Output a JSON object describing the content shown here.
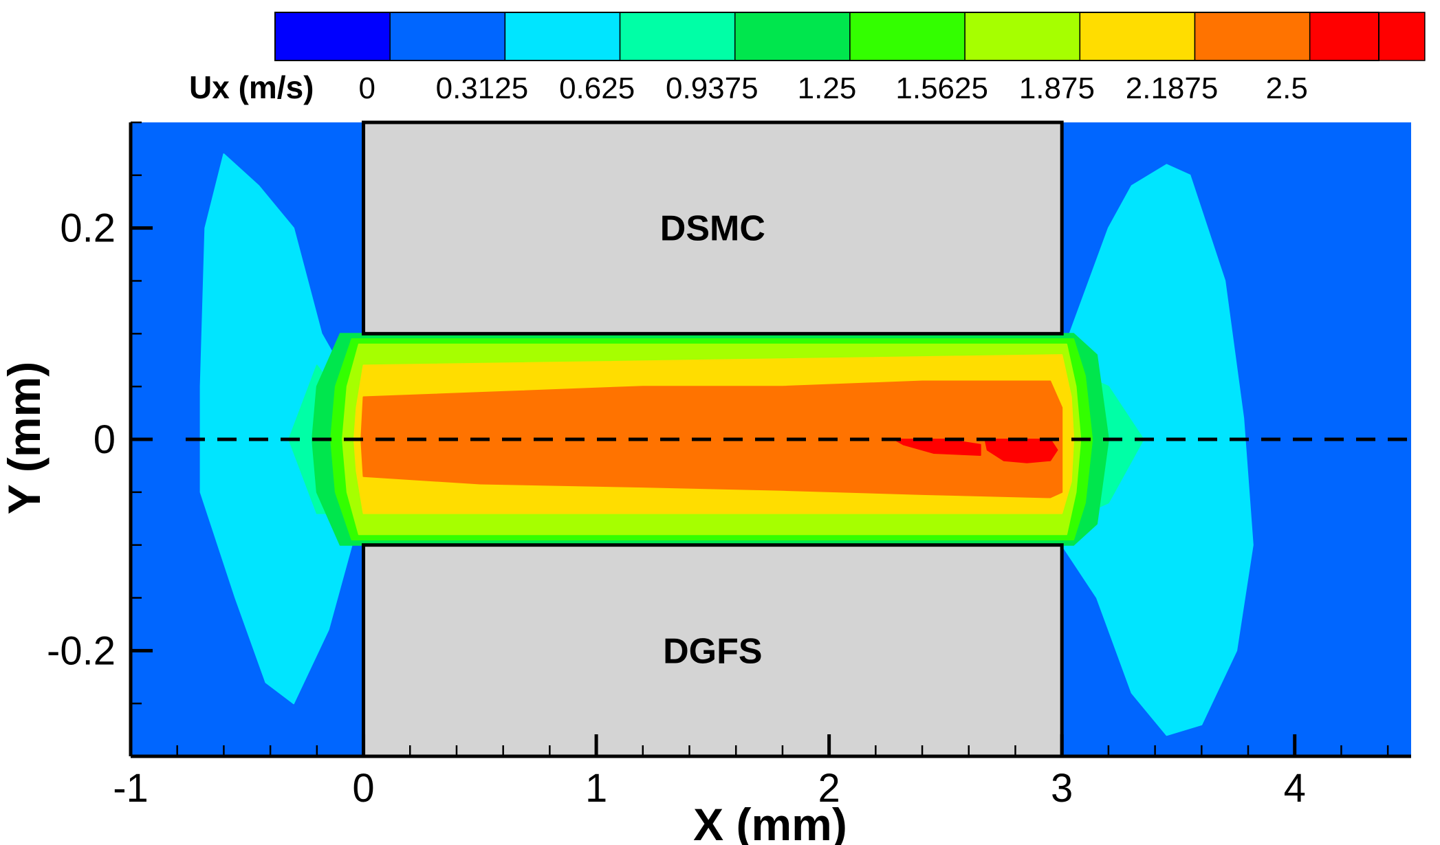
{
  "chart_data": {
    "type": "heatmap",
    "title": "",
    "xlabel": "X (mm)",
    "ylabel": "Y (mm)",
    "xlim": [
      -1,
      4.5
    ],
    "ylim": [
      -0.3,
      0.3
    ],
    "x_ticks": [
      -1,
      0,
      1,
      2,
      3,
      4
    ],
    "x_tick_labels": [
      "-1",
      "0",
      "1",
      "2",
      "3",
      "4"
    ],
    "y_ticks": [
      -0.2,
      0,
      0.2
    ],
    "y_tick_labels": [
      "-0.2",
      "0",
      "0.2"
    ],
    "colorbar": {
      "label": "Ux (m/s)",
      "position": "top",
      "tick_values": [
        0,
        0.3125,
        0.625,
        0.9375,
        1.25,
        1.5625,
        1.875,
        2.1875,
        2.5
      ],
      "tick_labels": [
        "0",
        "0.3125",
        "0.625",
        "0.9375",
        "1.25",
        "1.5625",
        "1.875",
        "2.1875",
        "2.5"
      ],
      "range": [
        -0.25,
        2.75
      ],
      "band_width": 0.3125,
      "colors": [
        "#0000ff",
        "#0066ff",
        "#00e5ff",
        "#00ffa6",
        "#00e64d",
        "#33ff00",
        "#a6ff00",
        "#ffdd00",
        "#ff7300",
        "#ff0000"
      ]
    },
    "blocks": [
      {
        "name": "DSMC",
        "x": [
          0,
          3
        ],
        "y": [
          0.1,
          0.3
        ]
      },
      {
        "name": "DGFS",
        "x": [
          0,
          3
        ],
        "y": [
          -0.3,
          -0.1
        ]
      }
    ],
    "block_color": "#d4d4d4",
    "background_color": "#0066ff",
    "centerline_y": 0,
    "contours": [
      {
        "level": 0.3125,
        "color": "#00e5ff",
        "regions": [
          [
            [
              -0.6,
              0.27
            ],
            [
              -0.45,
              0.24
            ],
            [
              -0.3,
              0.2
            ],
            [
              -0.18,
              0.1
            ],
            [
              -0.05,
              0.05
            ],
            [
              0,
              0
            ],
            [
              -0.05,
              -0.1
            ],
            [
              -0.15,
              -0.18
            ],
            [
              -0.3,
              -0.25
            ],
            [
              -0.42,
              -0.23
            ],
            [
              -0.55,
              -0.15
            ],
            [
              -0.7,
              -0.05
            ],
            [
              -0.7,
              0.05
            ],
            [
              -0.68,
              0.2
            ]
          ],
          [
            [
              3.0,
              0.08
            ],
            [
              3.2,
              0.2
            ],
            [
              3.3,
              0.24
            ],
            [
              3.45,
              0.26
            ],
            [
              3.55,
              0.25
            ],
            [
              3.7,
              0.15
            ],
            [
              3.78,
              0.02
            ],
            [
              3.82,
              -0.1
            ],
            [
              3.75,
              -0.2
            ],
            [
              3.6,
              -0.27
            ],
            [
              3.45,
              -0.28
            ],
            [
              3.3,
              -0.24
            ],
            [
              3.15,
              -0.15
            ],
            [
              3.0,
              -0.1
            ]
          ]
        ]
      },
      {
        "level": 0.625,
        "color": "#00ffa6",
        "regions": [
          [
            [
              -0.2,
              0.07
            ],
            [
              -0.1,
              0.04
            ],
            [
              0,
              0.02
            ],
            [
              0.05,
              0
            ],
            [
              0,
              -0.03
            ],
            [
              -0.08,
              -0.07
            ],
            [
              -0.2,
              -0.07
            ],
            [
              -0.32,
              0
            ]
          ],
          [
            [
              3.0,
              0.1
            ],
            [
              3.1,
              0.06
            ],
            [
              3.2,
              0.05
            ],
            [
              3.35,
              0
            ],
            [
              3.2,
              -0.06
            ],
            [
              3.1,
              -0.07
            ],
            [
              3.0,
              -0.1
            ]
          ]
        ]
      },
      {
        "level": 0.9375,
        "color": "#00e64d",
        "regions": [
          [
            [
              -0.1,
              0.1
            ],
            [
              3.05,
              0.1
            ],
            [
              3.15,
              0.08
            ],
            [
              3.2,
              0.0
            ],
            [
              3.15,
              -0.08
            ],
            [
              3.05,
              -0.1
            ],
            [
              -0.1,
              -0.1
            ],
            [
              -0.2,
              -0.05
            ],
            [
              -0.22,
              0.0
            ],
            [
              -0.2,
              0.05
            ]
          ]
        ]
      },
      {
        "level": 1.25,
        "color": "#33ff00",
        "regions": [
          [
            [
              -0.05,
              0.095
            ],
            [
              3.05,
              0.095
            ],
            [
              3.1,
              0.06
            ],
            [
              3.13,
              0.0
            ],
            [
              3.1,
              -0.06
            ],
            [
              3.05,
              -0.095
            ],
            [
              -0.05,
              -0.095
            ],
            [
              -0.12,
              -0.05
            ],
            [
              -0.14,
              0.0
            ],
            [
              -0.12,
              0.05
            ]
          ]
        ]
      },
      {
        "level": 1.5625,
        "color": "#a6ff00",
        "regions": [
          [
            [
              -0.02,
              0.09
            ],
            [
              3.02,
              0.09
            ],
            [
              3.06,
              0.05
            ],
            [
              3.08,
              0.0
            ],
            [
              3.06,
              -0.05
            ],
            [
              3.02,
              -0.09
            ],
            [
              -0.02,
              -0.09
            ],
            [
              -0.07,
              -0.05
            ],
            [
              -0.09,
              0.0
            ],
            [
              -0.07,
              0.05
            ]
          ]
        ]
      },
      {
        "level": 1.875,
        "color": "#ffdd00",
        "regions": [
          [
            [
              0,
              0.07
            ],
            [
              3.0,
              0.08
            ],
            [
              3.04,
              0.04
            ],
            [
              3.05,
              0.0
            ],
            [
              3.04,
              -0.04
            ],
            [
              3.0,
              -0.07
            ],
            [
              0,
              -0.07
            ],
            [
              -0.03,
              -0.03
            ],
            [
              -0.04,
              0.0
            ],
            [
              -0.03,
              0.03
            ]
          ]
        ]
      },
      {
        "level": 2.1875,
        "color": "#ff7300",
        "regions": [
          [
            [
              0,
              0.04
            ],
            [
              0.6,
              0.045
            ],
            [
              1.2,
              0.05
            ],
            [
              1.8,
              0.05
            ],
            [
              2.4,
              0.055
            ],
            [
              2.95,
              0.055
            ],
            [
              3.0,
              0.03
            ],
            [
              3.0,
              -0.05
            ],
            [
              2.95,
              -0.055
            ],
            [
              2.4,
              -0.052
            ],
            [
              1.8,
              -0.048
            ],
            [
              1.2,
              -0.045
            ],
            [
              0.5,
              -0.042
            ],
            [
              0,
              -0.035
            ],
            [
              -0.01,
              0.0
            ]
          ]
        ]
      },
      {
        "level": 2.5,
        "color": "#ff0000",
        "regions": [
          [
            [
              2.28,
              0.0
            ],
            [
              2.5,
              0.0
            ],
            [
              2.65,
              -0.005
            ],
            [
              2.65,
              -0.015
            ],
            [
              2.45,
              -0.013
            ],
            [
              2.32,
              -0.005
            ]
          ],
          [
            [
              2.67,
              0.0
            ],
            [
              2.95,
              0.0
            ],
            [
              2.98,
              -0.01
            ],
            [
              2.95,
              -0.02
            ],
            [
              2.85,
              -0.022
            ],
            [
              2.75,
              -0.02
            ],
            [
              2.68,
              -0.01
            ]
          ]
        ]
      }
    ]
  }
}
